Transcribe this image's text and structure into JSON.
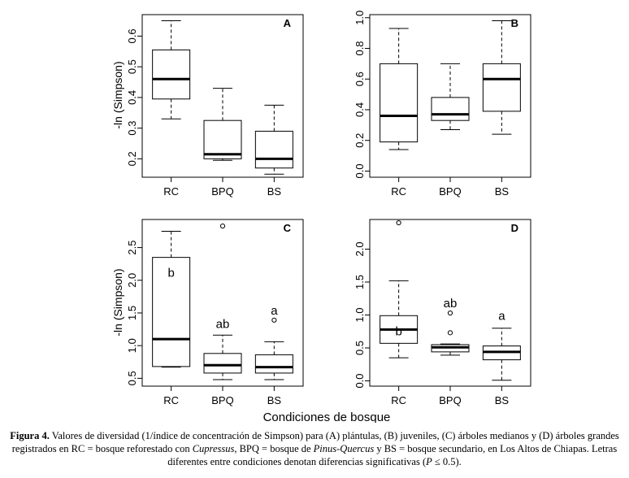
{
  "figure": {
    "y_label": "-ln (Simpson)",
    "x_title": "Condiciones de bosque"
  },
  "caption": {
    "label": "Figura 4.",
    "text_1": "  Valores de diversidad (1/índice de concentración de Simpson) para (A) plántulas, (B) juveniles, (C) árboles medianos y (D) árboles grandes registrados en RC = bosque reforestado con ",
    "italic_1": "Cupressus",
    "text_2": ", BPQ = bosque de ",
    "italic_2": "Pinus-Quercus",
    "text_3": " y BS = bosque secundario, en Los Altos de Chiapas. Letras diferentes entre condiciones denotan diferencias significativas (",
    "italic_3": "P",
    "text_4": " ≤ 0.5)."
  },
  "chart_data": [
    {
      "type": "box",
      "panel": "A",
      "categories": [
        "RC",
        "BPQ",
        "BS"
      ],
      "ylabel": "-ln (Simpson)",
      "yticks": [
        "0.2",
        "0.3",
        "0.4",
        "0.5",
        "0.6"
      ],
      "ylim": [
        0.14,
        0.67
      ],
      "boxes": [
        {
          "min": 0.33,
          "q1": 0.395,
          "median": 0.46,
          "q3": 0.555,
          "max": 0.65,
          "outliers": []
        },
        {
          "min": 0.195,
          "q1": 0.2,
          "median": 0.215,
          "q3": 0.325,
          "max": 0.43,
          "outliers": []
        },
        {
          "min": 0.15,
          "q1": 0.17,
          "median": 0.2,
          "q3": 0.29,
          "max": 0.375,
          "outliers": []
        }
      ],
      "annotations": []
    },
    {
      "type": "box",
      "panel": "B",
      "categories": [
        "RC",
        "BPQ",
        "BS"
      ],
      "ylabel": "",
      "yticks": [
        "0.0",
        "0.2",
        "0.4",
        "0.6",
        "0.8",
        "1.0"
      ],
      "ylim": [
        -0.04,
        1.02
      ],
      "boxes": [
        {
          "min": 0.14,
          "q1": 0.19,
          "median": 0.36,
          "q3": 0.7,
          "max": 0.93,
          "outliers": []
        },
        {
          "min": 0.27,
          "q1": 0.33,
          "median": 0.37,
          "q3": 0.48,
          "max": 0.7,
          "outliers": []
        },
        {
          "min": 0.24,
          "q1": 0.39,
          "median": 0.6,
          "q3": 0.7,
          "max": 0.98,
          "outliers": []
        }
      ],
      "annotations": []
    },
    {
      "type": "box",
      "panel": "C",
      "categories": [
        "RC",
        "BPQ",
        "BS"
      ],
      "ylabel": "-ln (Simpson)",
      "yticks": [
        "0.5",
        "1.0",
        "1.5",
        "2.0",
        "2.5"
      ],
      "ylim": [
        0.38,
        2.93
      ],
      "boxes": [
        {
          "min": 0.67,
          "q1": 0.68,
          "median": 1.1,
          "q3": 2.35,
          "max": 2.75,
          "outliers": []
        },
        {
          "min": 0.48,
          "q1": 0.58,
          "median": 0.7,
          "q3": 0.88,
          "max": 1.16,
          "outliers": [
            2.83
          ]
        },
        {
          "min": 0.48,
          "q1": 0.58,
          "median": 0.67,
          "q3": 0.86,
          "max": 1.06,
          "outliers": [
            1.39
          ]
        }
      ],
      "annotations": [
        "b",
        "ab",
        "a"
      ]
    },
    {
      "type": "box",
      "panel": "D",
      "categories": [
        "RC",
        "BPQ",
        "BS"
      ],
      "ylabel": "",
      "yticks": [
        "0.0",
        "0.5",
        "1.0",
        "1.5",
        "2.0"
      ],
      "ylim": [
        -0.08,
        2.45
      ],
      "boxes": [
        {
          "min": 0.35,
          "q1": 0.57,
          "median": 0.78,
          "q3": 0.99,
          "max": 1.52,
          "outliers": [
            2.4
          ]
        },
        {
          "min": 0.39,
          "q1": 0.44,
          "median": 0.51,
          "q3": 0.55,
          "max": 0.56,
          "outliers": [
            1.03,
            0.73
          ]
        },
        {
          "min": 0.01,
          "q1": 0.32,
          "median": 0.44,
          "q3": 0.53,
          "max": 0.8,
          "outliers": []
        }
      ],
      "annotations": [
        "b",
        "ab",
        "a"
      ]
    }
  ]
}
